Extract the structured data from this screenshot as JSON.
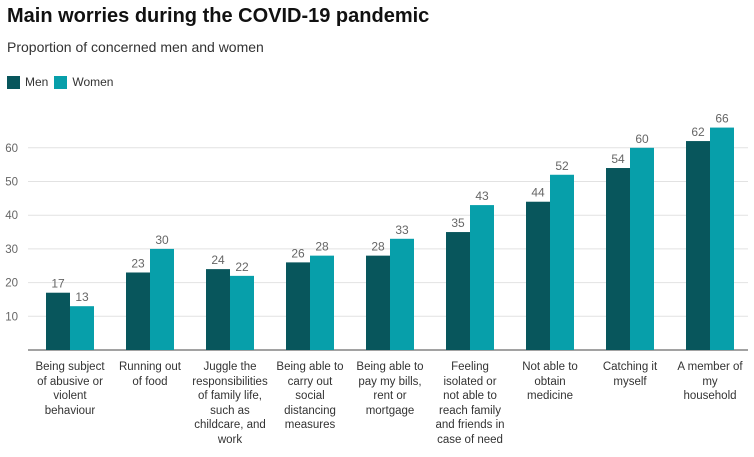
{
  "title": "Main worries during the COVID-19 pandemic",
  "subtitle": "Proportion of concerned men and women",
  "colors": {
    "men": "#08565c",
    "women": "#079faa",
    "grid": "#e2e2e2",
    "axis": "#444444",
    "value_label": "#666666",
    "tick_label": "#666666"
  },
  "chart_data": {
    "type": "bar",
    "title": "Main worries during the COVID-19 pandemic",
    "subtitle": "Proportion of concerned men and women",
    "xlabel": "",
    "ylabel": "",
    "ylim": [
      0,
      70
    ],
    "yticks": [
      10,
      20,
      30,
      40,
      50,
      60
    ],
    "grid": true,
    "legend_position": "top-left",
    "categories": [
      "Being subject of abusive or violent behaviour",
      "Running out of food",
      "Juggle the responsibilities of family life, such as childcare, and work",
      "Being able to carry out social distancing measures",
      "Being able to pay my bills, rent or mortgage",
      "Feeling isolated or not able to reach family and friends in case of need",
      "Not able to obtain medicine",
      "Catching it myself",
      "A member of my household"
    ],
    "series": [
      {
        "name": "Men",
        "values": [
          17,
          23,
          24,
          26,
          28,
          35,
          44,
          54,
          62
        ]
      },
      {
        "name": "Women",
        "values": [
          13,
          30,
          22,
          28,
          33,
          43,
          52,
          60,
          66
        ]
      }
    ]
  },
  "category_label_lines": [
    [
      "Being subject",
      "of abusive or",
      "violent",
      "behaviour"
    ],
    [
      "Running out",
      "of food"
    ],
    [
      "Juggle the",
      "responsibilities",
      "of family life,",
      "such as",
      "childcare, and",
      "work"
    ],
    [
      "Being able to",
      "carry out",
      "social",
      "distancing",
      "measures"
    ],
    [
      "Being able to",
      "pay my bills,",
      "rent or",
      "mortgage"
    ],
    [
      "Feeling",
      "isolated or",
      "not able to",
      "reach family",
      "and friends in",
      "case of need"
    ],
    [
      "Not able to",
      "obtain",
      "medicine"
    ],
    [
      "Catching it",
      "myself"
    ],
    [
      "A member of",
      "my",
      "household"
    ]
  ]
}
